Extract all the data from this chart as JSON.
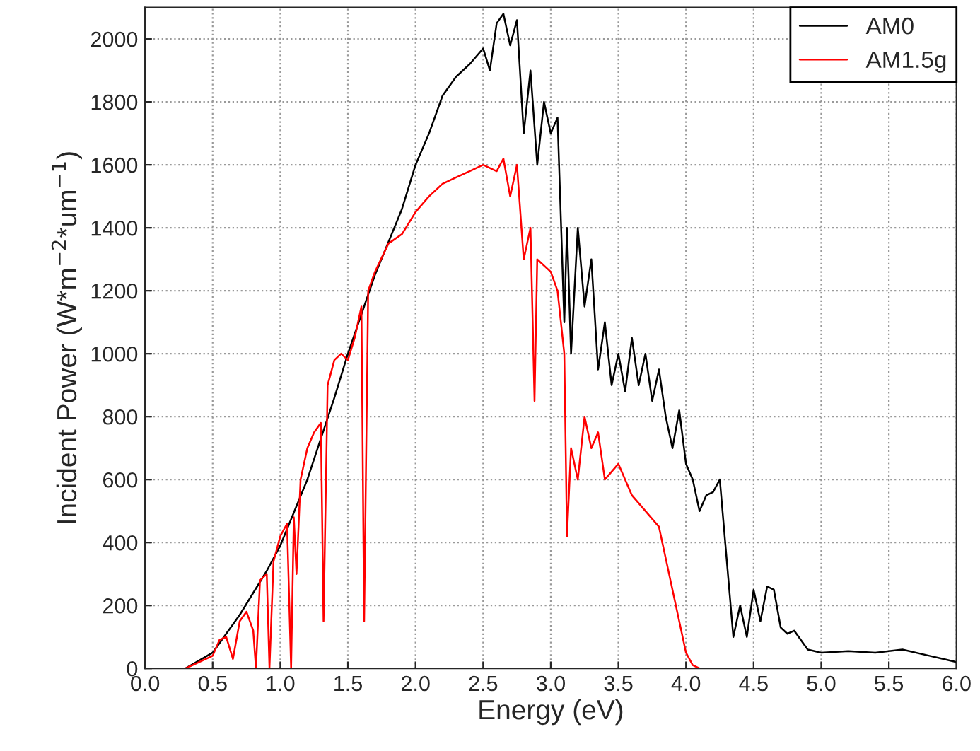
{
  "chart_data": {
    "type": "line",
    "xlabel": "Energy (eV)",
    "ylabel": "Incident Power (W*m$^{−2}$*um$^{−1}$)",
    "xlim": [
      0,
      6
    ],
    "xticks": [
      {
        "value": 0,
        "label": "0.0"
      },
      {
        "value": 0.5,
        "label": "0.5"
      },
      {
        "value": 1,
        "label": "1.0"
      },
      {
        "value": 1.5,
        "label": "1.5"
      },
      {
        "value": 2,
        "label": "2.0"
      },
      {
        "value": 2.5,
        "label": "2.5"
      },
      {
        "value": 3,
        "label": "3.0"
      },
      {
        "value": 3.5,
        "label": "3.5"
      },
      {
        "value": 4,
        "label": "4.0"
      },
      {
        "value": 4.5,
        "label": "4.5"
      },
      {
        "value": 5,
        "label": "5.0"
      },
      {
        "value": 5.5,
        "label": "5.5"
      },
      {
        "value": 6,
        "label": "6.0"
      }
    ],
    "ylim": [
      0,
      2100
    ],
    "yticks": [
      0,
      200,
      400,
      600,
      800,
      1000,
      1200,
      1400,
      1600,
      1800,
      2000
    ],
    "grid": true,
    "legend": "top right",
    "line_style": "solid",
    "marker": "none",
    "series": [
      {
        "name": "AM0",
        "color": "#000000",
        "x": [
          0.3,
          0.5,
          0.7,
          0.9,
          1.0,
          1.2,
          1.4,
          1.5,
          1.7,
          1.9,
          2.0,
          2.1,
          2.2,
          2.3,
          2.4,
          2.5,
          2.55,
          2.6,
          2.65,
          2.7,
          2.75,
          2.8,
          2.85,
          2.9,
          2.95,
          3.0,
          3.05,
          3.1,
          3.12,
          3.15,
          3.2,
          3.25,
          3.3,
          3.35,
          3.4,
          3.45,
          3.5,
          3.55,
          3.6,
          3.65,
          3.7,
          3.75,
          3.8,
          3.85,
          3.9,
          3.95,
          4.0,
          4.05,
          4.1,
          4.15,
          4.2,
          4.25,
          4.3,
          4.35,
          4.4,
          4.45,
          4.5,
          4.55,
          4.6,
          4.65,
          4.7,
          4.75,
          4.8,
          4.9,
          5.0,
          5.2,
          5.4,
          5.6,
          5.8,
          5.9,
          6.0
        ],
        "values": [
          0,
          50,
          170,
          310,
          390,
          600,
          860,
          1000,
          1250,
          1460,
          1600,
          1700,
          1820,
          1880,
          1920,
          1970,
          1900,
          2050,
          2080,
          1980,
          2060,
          1700,
          1900,
          1600,
          1800,
          1700,
          1750,
          1100,
          1400,
          1000,
          1400,
          1150,
          1300,
          950,
          1100,
          900,
          1000,
          880,
          1050,
          900,
          1000,
          850,
          950,
          800,
          700,
          820,
          650,
          600,
          500,
          550,
          560,
          600,
          350,
          100,
          200,
          100,
          250,
          150,
          260,
          250,
          130,
          110,
          120,
          60,
          50,
          55,
          50,
          60,
          40,
          30,
          20
        ]
      },
      {
        "name": "AM1.5g",
        "color": "#ff0000",
        "x": [
          0.3,
          0.5,
          0.55,
          0.6,
          0.65,
          0.7,
          0.75,
          0.8,
          0.82,
          0.85,
          0.9,
          0.92,
          0.95,
          1.0,
          1.05,
          1.08,
          1.1,
          1.12,
          1.15,
          1.2,
          1.25,
          1.3,
          1.32,
          1.35,
          1.4,
          1.45,
          1.5,
          1.55,
          1.6,
          1.62,
          1.65,
          1.7,
          1.8,
          1.9,
          2.0,
          2.1,
          2.2,
          2.3,
          2.4,
          2.5,
          2.6,
          2.65,
          2.7,
          2.75,
          2.8,
          2.85,
          2.88,
          2.9,
          3.0,
          3.05,
          3.1,
          3.12,
          3.15,
          3.2,
          3.25,
          3.3,
          3.35,
          3.4,
          3.5,
          3.6,
          3.7,
          3.8,
          3.85,
          3.9,
          3.95,
          4.0,
          4.05,
          4.1
        ],
        "values": [
          0,
          40,
          90,
          100,
          30,
          150,
          180,
          120,
          0,
          280,
          300,
          0,
          340,
          420,
          460,
          0,
          480,
          300,
          600,
          700,
          750,
          780,
          150,
          900,
          980,
          1000,
          980,
          1050,
          1150,
          150,
          1200,
          1260,
          1350,
          1380,
          1450,
          1500,
          1540,
          1560,
          1580,
          1600,
          1580,
          1620,
          1500,
          1600,
          1300,
          1400,
          850,
          1300,
          1260,
          1200,
          1000,
          420,
          700,
          600,
          800,
          700,
          750,
          600,
          650,
          550,
          500,
          450,
          350,
          250,
          150,
          50,
          10,
          0
        ]
      }
    ]
  }
}
